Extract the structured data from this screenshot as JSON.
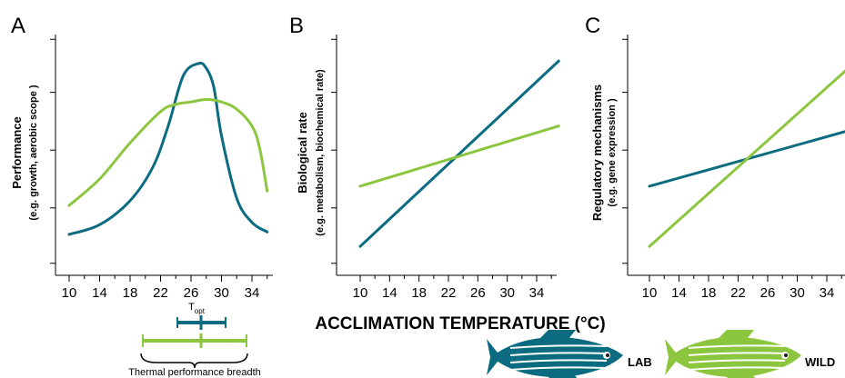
{
  "colors": {
    "lab": "#0b6b80",
    "wild": "#8cc63f",
    "axis": "#000000"
  },
  "x_axis_title": "ACCLIMATION TEMPERATURE (°C)",
  "legend": [
    {
      "label": "LAB",
      "color": "#0b6b80",
      "icon": "zebrafish-icon"
    },
    {
      "label": "WILD",
      "color": "#8cc63f",
      "icon": "zebrafish-icon"
    }
  ],
  "inset": {
    "topt_label": "T",
    "topt_subscript": "opt",
    "breadth_label": "Thermal performance breadth"
  },
  "chart_data": [
    {
      "panel": "A",
      "type": "line",
      "ylabel_line1": "Performance",
      "ylabel_line2": "(e.g. growth, aerobic scope )",
      "xticks": [
        10,
        14,
        18,
        22,
        26,
        30,
        34
      ],
      "xlim": [
        8,
        38
      ],
      "ylim": [
        0,
        1
      ],
      "series": [
        {
          "name": "LAB",
          "x": [
            10,
            14,
            18,
            21,
            23,
            25,
            27,
            28,
            29,
            30,
            32,
            34,
            36
          ],
          "y": [
            0.17,
            0.21,
            0.31,
            0.45,
            0.62,
            0.83,
            0.88,
            0.86,
            0.78,
            0.58,
            0.32,
            0.22,
            0.18
          ]
        },
        {
          "name": "WILD",
          "x": [
            10,
            14,
            18,
            22,
            24,
            26,
            28,
            30,
            32,
            34,
            35,
            36
          ],
          "y": [
            0.29,
            0.4,
            0.55,
            0.68,
            0.71,
            0.72,
            0.73,
            0.72,
            0.69,
            0.62,
            0.53,
            0.35
          ]
        }
      ]
    },
    {
      "panel": "B",
      "type": "line",
      "ylabel_line1": "Biological rate",
      "ylabel_line2": "(e.g. metabolism, biochemical rate)",
      "xticks": [
        10,
        14,
        18,
        22,
        26,
        30,
        34
      ],
      "xlim": [
        8,
        38
      ],
      "ylim": [
        0,
        1
      ],
      "series": [
        {
          "name": "LAB",
          "x": [
            10,
            37
          ],
          "y": [
            0.12,
            0.89
          ]
        },
        {
          "name": "WILD",
          "x": [
            10,
            37
          ],
          "y": [
            0.37,
            0.62
          ]
        }
      ]
    },
    {
      "panel": "C",
      "type": "line",
      "ylabel_line1": "Regulatory mechanisms",
      "ylabel_line2": "(e.g. gene expression )",
      "xticks": [
        10,
        14,
        18,
        22,
        26,
        30,
        34
      ],
      "xlim": [
        8,
        38
      ],
      "ylim": [
        0,
        1
      ],
      "series": [
        {
          "name": "LAB",
          "x": [
            10,
            38
          ],
          "y": [
            0.37,
            0.61
          ]
        },
        {
          "name": "WILD",
          "x": [
            10,
            38
          ],
          "y": [
            0.12,
            0.89
          ]
        }
      ]
    }
  ]
}
